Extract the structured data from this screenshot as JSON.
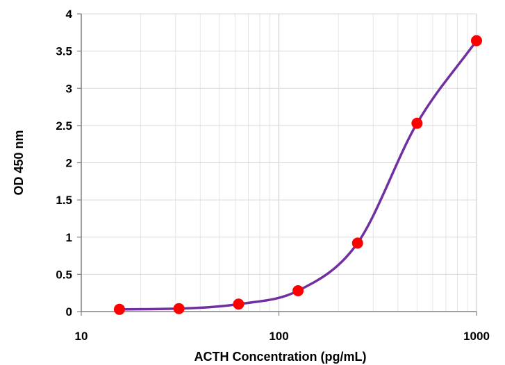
{
  "chart_data": {
    "type": "scatter",
    "title": "",
    "xlabel": "ACTH Concentration (pg/mL)",
    "ylabel": "OD 450 nm",
    "x_scale": "log",
    "xlim": [
      10,
      1000
    ],
    "ylim": [
      0,
      4
    ],
    "x_ticks": [
      "10",
      "100",
      "1000"
    ],
    "y_ticks": [
      "0",
      "0.5",
      "1",
      "1.5",
      "2",
      "2.5",
      "3",
      "3.5",
      "4"
    ],
    "grid": true,
    "legend": "none",
    "series": [
      {
        "x": [
          15.6,
          31.2,
          62.5,
          125,
          250,
          500,
          1000
        ],
        "y": [
          0.03,
          0.04,
          0.1,
          0.28,
          0.92,
          2.53,
          3.64
        ],
        "marker_color": "#ff0000",
        "curve_color": "#7030a0"
      }
    ]
  }
}
